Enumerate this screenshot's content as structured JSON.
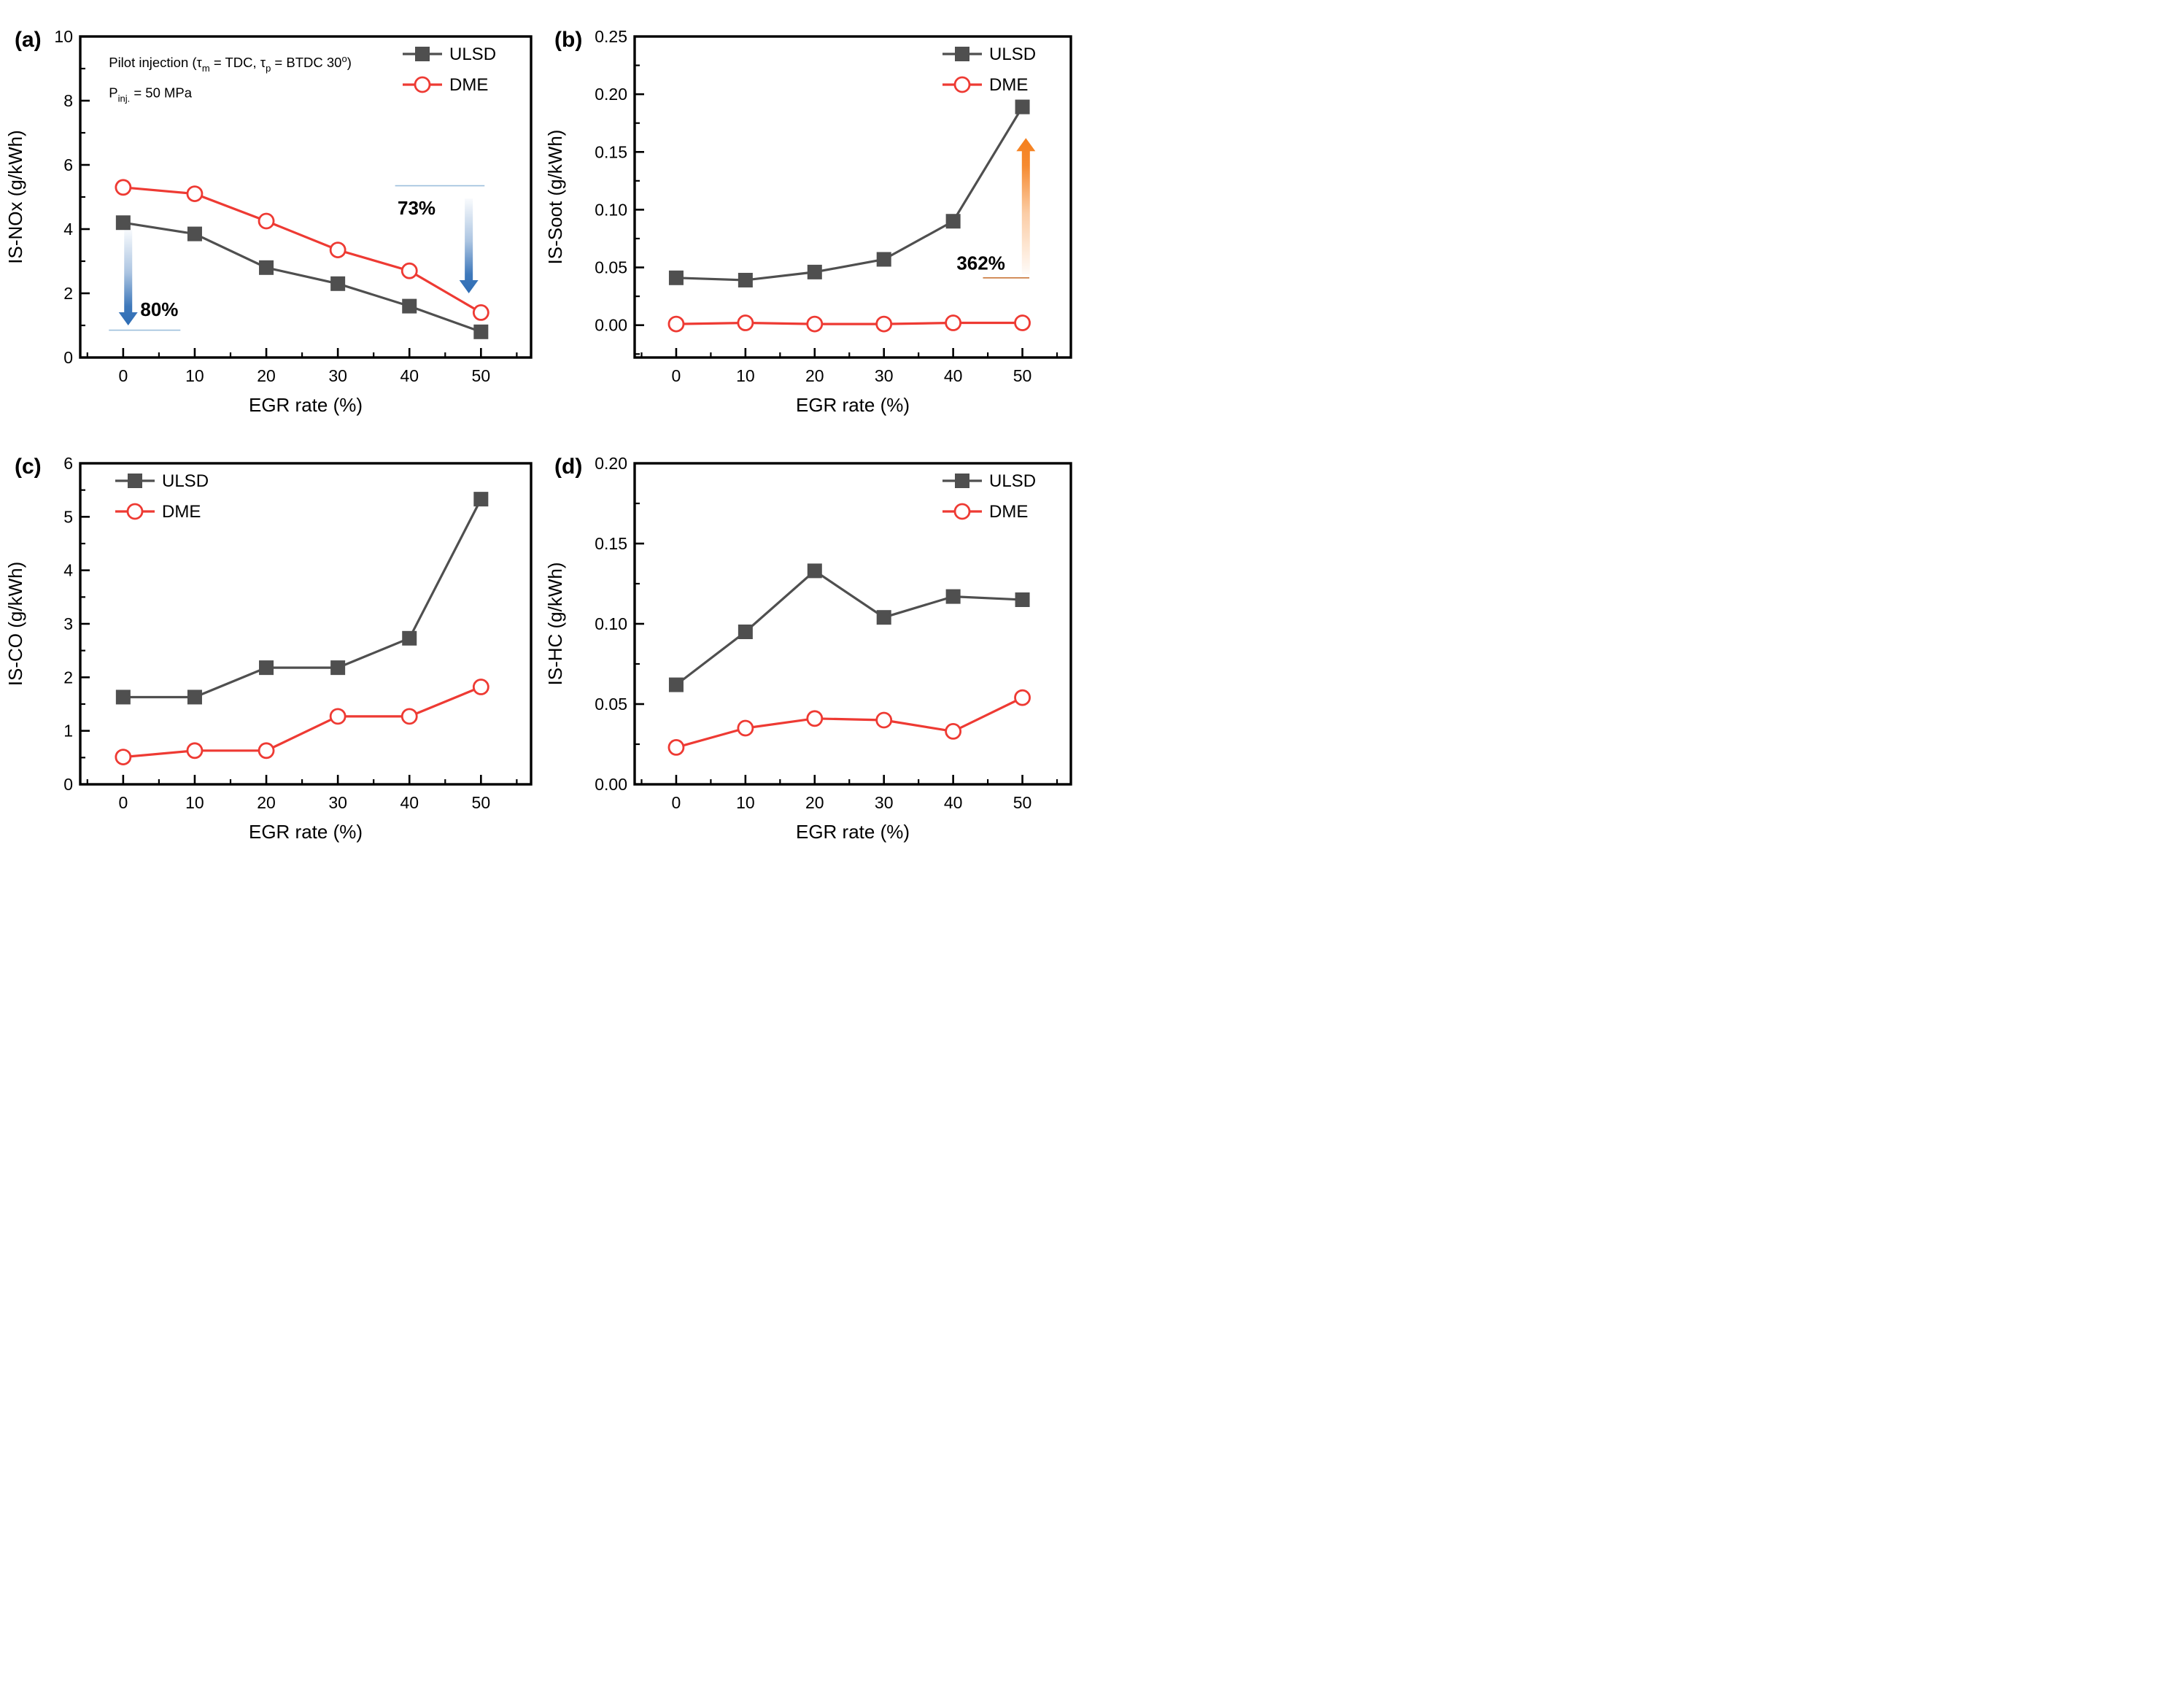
{
  "figure": {
    "colors": {
      "ulsd": "#4f4f4f",
      "dme": "#ee3a33",
      "frame": "#000000",
      "blue": "#2e6db5",
      "blue_light": "#9dbfdc",
      "orange": "#f5801e",
      "orange_line": "#c9773a",
      "legend_text": "#1a1a1a"
    }
  },
  "chart_data": [
    {
      "id": "a",
      "label": "(a)",
      "type": "line",
      "xlabel": "EGR rate (%)",
      "ylabel": "IS-NOx (g/kWh)",
      "x": [
        0,
        10,
        20,
        30,
        40,
        50
      ],
      "xlim": [
        -6,
        57
      ],
      "ylim": [
        0,
        10
      ],
      "xticks": [
        0,
        10,
        20,
        30,
        40,
        50
      ],
      "yticks": [
        0,
        2,
        4,
        6,
        8,
        10
      ],
      "ytick_decimals": 0,
      "minor_x": 5,
      "minor_y": 1,
      "grid": false,
      "legend": {
        "position": "top-right",
        "labels": [
          "ULSD",
          "DME"
        ]
      },
      "series": [
        {
          "name": "ULSD",
          "marker": "square",
          "color_key": "ulsd",
          "values": [
            4.2,
            3.85,
            2.8,
            2.3,
            1.6,
            0.8
          ]
        },
        {
          "name": "DME",
          "marker": "circle",
          "color_key": "dme",
          "values": [
            5.3,
            5.1,
            4.25,
            3.35,
            2.7,
            1.4
          ]
        }
      ],
      "note_pos": {
        "x": -2.0,
        "y_line1": 9.05,
        "y_line2": 8.1
      },
      "note_lines": [
        [
          {
            "t": "Pilot injection (τ"
          },
          {
            "t": "m",
            "s": "sub"
          },
          {
            "t": " = TDC, τ"
          },
          {
            "t": "p",
            "s": "sub"
          },
          {
            "t": " = BTDC 30"
          },
          {
            "t": "o",
            "s": "sup"
          },
          {
            "t": ")"
          }
        ],
        [
          {
            "t": "P"
          },
          {
            "t": "inj.",
            "s": "sub"
          },
          {
            "t": " = 50 MPa"
          }
        ]
      ],
      "annotations": [
        {
          "type": "arrow",
          "dir": "down",
          "x": 0.7,
          "y_from": 4.0,
          "y_to": 1.0,
          "color_key": "blue"
        },
        {
          "type": "text",
          "x": 2.4,
          "y": 1.3,
          "text": "80%",
          "color_key": "blue",
          "anchor": "start",
          "size": 26,
          "bold": true
        },
        {
          "type": "hline",
          "y": 0.85,
          "x1": -2,
          "x2": 8,
          "color_key": "blue_light"
        },
        {
          "type": "hline",
          "y": 5.35,
          "x1": 38,
          "x2": 50.5,
          "color_key": "blue_light"
        },
        {
          "type": "text",
          "x": 41,
          "y": 4.45,
          "text": "73%",
          "color_key": "blue",
          "anchor": "middle",
          "size": 26,
          "bold": true
        },
        {
          "type": "arrow",
          "dir": "down",
          "x": 48.3,
          "y_from": 4.95,
          "y_to": 2.0,
          "color_key": "blue"
        }
      ]
    },
    {
      "id": "b",
      "label": "(b)",
      "type": "line",
      "xlabel": "EGR rate (%)",
      "ylabel": "IS-Soot (g/kWh)",
      "x": [
        0,
        10,
        20,
        30,
        40,
        50
      ],
      "xlim": [
        -6,
        57
      ],
      "ylim": [
        -0.028,
        0.25
      ],
      "xticks": [
        0,
        10,
        20,
        30,
        40,
        50
      ],
      "yticks": [
        0,
        0.05,
        0.1,
        0.15,
        0.2,
        0.25
      ],
      "ytick_decimals": 2,
      "minor_x": 5,
      "minor_y": 0.025,
      "grid": false,
      "legend": {
        "position": "top-right",
        "labels": [
          "ULSD",
          "DME"
        ]
      },
      "series": [
        {
          "name": "ULSD",
          "marker": "square",
          "color_key": "ulsd",
          "values": [
            0.041,
            0.039,
            0.046,
            0.057,
            0.09,
            0.189
          ]
        },
        {
          "name": "DME",
          "marker": "circle",
          "color_key": "dme",
          "values": [
            0.001,
            0.002,
            0.001,
            0.001,
            0.002,
            0.002
          ]
        }
      ],
      "annotations": [
        {
          "type": "text",
          "x": 44,
          "y": 0.048,
          "text": "362%",
          "color_key": "orange",
          "anchor": "middle",
          "size": 26,
          "bold": true
        },
        {
          "type": "hline",
          "y": 0.041,
          "x1": 44.3,
          "x2": 51,
          "color_key": "orange_line"
        },
        {
          "type": "arrow",
          "dir": "up",
          "x": 50.5,
          "y_from": 0.044,
          "y_to": 0.162,
          "color_key": "orange"
        }
      ]
    },
    {
      "id": "c",
      "label": "(c)",
      "type": "line",
      "xlabel": "EGR rate (%)",
      "ylabel": "IS-CO (g/kWh)",
      "x": [
        0,
        10,
        20,
        30,
        40,
        50
      ],
      "xlim": [
        -6,
        57
      ],
      "ylim": [
        0,
        6
      ],
      "xticks": [
        0,
        10,
        20,
        30,
        40,
        50
      ],
      "yticks": [
        0,
        1,
        2,
        3,
        4,
        5,
        6
      ],
      "ytick_decimals": 0,
      "minor_x": 5,
      "minor_y": 0.5,
      "grid": false,
      "legend": {
        "position": "top-left",
        "labels": [
          "ULSD",
          "DME"
        ]
      },
      "series": [
        {
          "name": "ULSD",
          "marker": "square",
          "color_key": "ulsd",
          "values": [
            1.63,
            1.63,
            2.18,
            2.18,
            2.73,
            5.33
          ]
        },
        {
          "name": "DME",
          "marker": "circle",
          "color_key": "dme",
          "values": [
            0.51,
            0.63,
            0.63,
            1.27,
            1.27,
            1.82
          ]
        }
      ],
      "annotations": []
    },
    {
      "id": "d",
      "label": "(d)",
      "type": "line",
      "xlabel": "EGR rate (%)",
      "ylabel": "IS-HC (g/kWh)",
      "x": [
        0,
        10,
        20,
        30,
        40,
        50
      ],
      "xlim": [
        -6,
        57
      ],
      "ylim": [
        0,
        0.2
      ],
      "xticks": [
        0,
        10,
        20,
        30,
        40,
        50
      ],
      "yticks": [
        0,
        0.05,
        0.1,
        0.15,
        0.2
      ],
      "ytick_decimals": 2,
      "minor_x": 5,
      "minor_y": 0.025,
      "grid": false,
      "legend": {
        "position": "top-right",
        "labels": [
          "ULSD",
          "DME"
        ]
      },
      "series": [
        {
          "name": "ULSD",
          "marker": "square",
          "color_key": "ulsd",
          "values": [
            0.062,
            0.095,
            0.133,
            0.104,
            0.117,
            0.115
          ]
        },
        {
          "name": "DME",
          "marker": "circle",
          "color_key": "dme",
          "values": [
            0.023,
            0.035,
            0.041,
            0.04,
            0.033,
            0.054
          ]
        }
      ],
      "annotations": []
    }
  ]
}
